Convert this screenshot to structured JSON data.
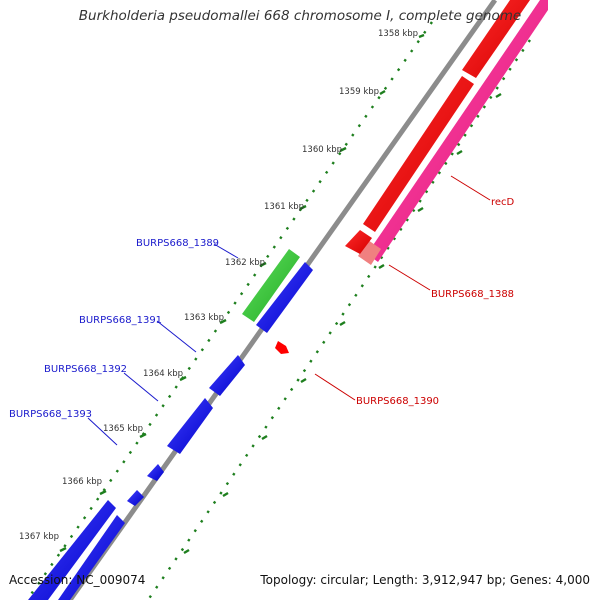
{
  "title": "Burkholderia pseudomallei 668 chromosome I, complete genome",
  "accession": "Accession: NC_009074",
  "summary": "Topology: circular; Length: 3,912,947 bp; Genes: 4,000",
  "scale_labels": [
    "1358 kbp",
    "1359 kbp",
    "1360 kbp",
    "1361 kbp",
    "1362 kbp",
    "1363 kbp",
    "1364 kbp",
    "1365 kbp",
    "1366 kbp",
    "1367 kbp"
  ],
  "genes": [
    {
      "name": "recD",
      "strand": "reverse",
      "color": "#cc0000"
    },
    {
      "name": "BURPS668_1388",
      "strand": "reverse",
      "color": "#cc0000"
    },
    {
      "name": "BURPS668_1389",
      "strand": "forward",
      "color": "#1a1acc"
    },
    {
      "name": "BURPS668_1390",
      "strand": "reverse",
      "color": "#cc0000"
    },
    {
      "name": "BURPS668_1391",
      "strand": "forward",
      "color": "#1a1acc"
    },
    {
      "name": "BURPS668_1392",
      "strand": "forward",
      "color": "#1a1acc"
    },
    {
      "name": "BURPS668_1393",
      "strand": "forward",
      "color": "#1a1acc"
    }
  ],
  "colors": {
    "forward_cds": "#1010e0",
    "reverse_cds": "#ff0000",
    "forward_gene": "#33cc33",
    "reverse_gene": "#ff1493",
    "reverse_gene_light": "#f08080",
    "backbone": "#8c8c8c",
    "scale_ticks": "#1e7f1e"
  }
}
